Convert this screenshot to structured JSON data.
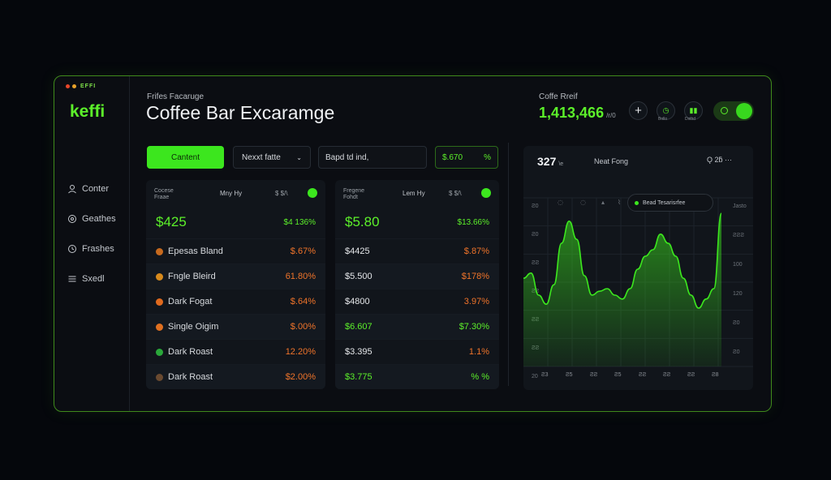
{
  "window": {
    "dots_label": "EFFI"
  },
  "brand": "keffi",
  "sidebar": {
    "items": [
      {
        "label": "Conter",
        "icon": "user-icon"
      },
      {
        "label": "Geathes",
        "icon": "settings-icon"
      },
      {
        "label": "Frashes",
        "icon": "clock-icon"
      },
      {
        "label": "Sxedl",
        "icon": "list-icon"
      }
    ]
  },
  "header": {
    "subtitle": "Frifes Facaruge",
    "title": "Coffee Bar Excaramge",
    "price_label": "Coffe Rreif",
    "price_value": "1,413,466",
    "price_unit": "/r/0",
    "btn1_label": "Bollo",
    "btn2_label": "Dsthd"
  },
  "toolbar": {
    "content_button": "Cantent",
    "select_value": "Nexxt fatte",
    "search_value": "Bapd td ind,",
    "amount_value": "$.670",
    "amount_suffix": "%"
  },
  "panel_left": {
    "head_left_1": "Cocese",
    "head_left_2": "Fraae",
    "head_mid": "Mny Hy",
    "head_right": "$ $/\\",
    "big_price": "$425",
    "big_change": "$4 136%",
    "rows": [
      {
        "name": "Epesas Bland",
        "value": "$.67%",
        "coin": "#c76a1e"
      },
      {
        "name": "Fngle Bleird",
        "value": "61.80%",
        "coin": "#d88a1c"
      },
      {
        "name": "Dark Fogat",
        "value": "$.64%",
        "coin": "#e06a1e"
      },
      {
        "name": "Single Oigim",
        "value": "$.00%",
        "coin": "#e07020"
      },
      {
        "name": "Dark Roast",
        "value": "12.20%",
        "coin": "#2aa83a"
      },
      {
        "name": "Dark Roast",
        "value": "$2.00%",
        "coin": "#6a4a30"
      }
    ]
  },
  "panel_mid": {
    "head_left_1": "Fregene",
    "head_left_2": "Fohdt",
    "head_mid": "Lem Hy",
    "head_right": "$ $/\\",
    "big_price": "$5.80",
    "big_change": "$13.66%",
    "rows": [
      {
        "price": "$4425",
        "change": "$.87%",
        "price_color": "white",
        "change_color": "orange"
      },
      {
        "price": "$5.500",
        "change": "$178%",
        "price_color": "white",
        "change_color": "orange"
      },
      {
        "price": "$4800",
        "change": "3.97%",
        "price_color": "white",
        "change_color": "orange"
      },
      {
        "price": "$6.607",
        "change": "$7.30%",
        "price_color": "green",
        "change_color": "green"
      },
      {
        "price": "$3.395",
        "change": "1.1%",
        "price_color": "white",
        "change_color": "orange"
      },
      {
        "price": "$3.775",
        "change": "%  %",
        "price_color": "green",
        "change_color": "green"
      }
    ]
  },
  "chart_panel": {
    "top_value": "327",
    "top_unit": "\\e",
    "top_label": "Neat Fong",
    "top_right": "Ǫ 2ƃ ···",
    "legend_label": "Bead Tesarisrfee"
  },
  "chart_data": {
    "type": "area",
    "y_left_ticks": [
      "Ƨ0",
      "Ƨ0",
      "ƧƧ",
      "ƧƧ",
      "ƧƧ",
      "ƧƧ",
      "20"
    ],
    "y_right_ticks": [
      "Jasto",
      "ƧƧƧ",
      "100",
      "120",
      "Ƨ0",
      "Ƨ0"
    ],
    "x_ticks": [
      "Ƨ3",
      "Ƨ5",
      "ƧƧ",
      "Ƨ5",
      "ƧƧ",
      "ƧƧ",
      "ƧƧ",
      "Ƨ8"
    ],
    "values": [
      68,
      72,
      55,
      48,
      63,
      95,
      112,
      98,
      70,
      55,
      58,
      60,
      55,
      52,
      60,
      75,
      85,
      90,
      102,
      95,
      85,
      68,
      55,
      45,
      52,
      60,
      118
    ],
    "color": "#3ce61e",
    "grid": true
  }
}
